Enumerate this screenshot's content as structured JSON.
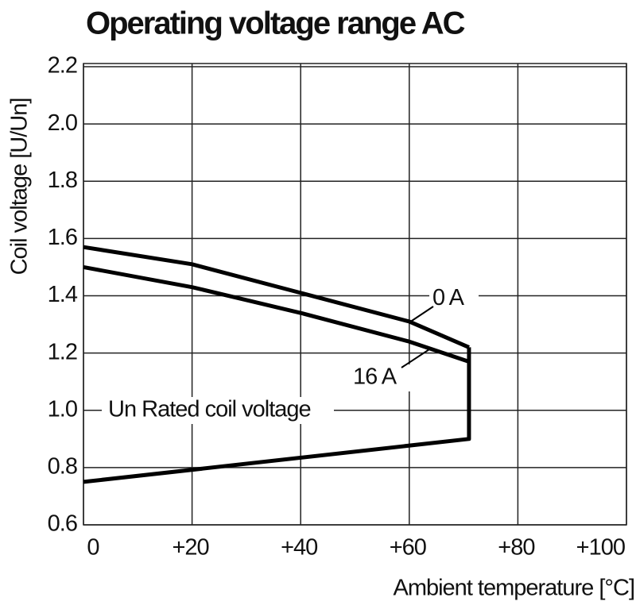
{
  "chart_data": {
    "type": "line",
    "title": "Operating voltage range AC",
    "x_label": "Ambient temperature [°C]",
    "y_label": "Coil voltage [U/Un]",
    "annotations": [
      "Un Rated coil voltage"
    ],
    "xlim": [
      0,
      100
    ],
    "xticks": [
      0,
      {
        "value": 20,
        "label": "+20"
      },
      {
        "value": 40,
        "label": "+40"
      },
      {
        "value": 60,
        "label": "+60"
      },
      {
        "value": 80,
        "label": "+80"
      },
      {
        "value": 100,
        "label": "+100"
      }
    ],
    "ylim": [
      0.6,
      2.2
    ],
    "yticks": [
      0.6,
      0.8,
      {
        "value": 1.0,
        "label": "1.0"
      },
      1.2,
      1.4,
      1.6,
      1.8,
      {
        "value": 2.0,
        "label": "2.0"
      },
      2.2
    ],
    "grid": true,
    "series": [
      {
        "name": "0 A",
        "color": "#000000",
        "x": [
          0,
          20,
          40,
          60,
          71
        ],
        "values": [
          1.57,
          1.51,
          1.41,
          1.31,
          1.22
        ]
      },
      {
        "name": "16 A",
        "color": "#000000",
        "x": [
          0,
          20,
          40,
          60,
          71
        ],
        "values": [
          1.5,
          1.43,
          1.34,
          1.24,
          1.17
        ]
      },
      {
        "color": "#000000",
        "x": [
          0,
          71,
          71
        ],
        "values": [
          0.75,
          0.9,
          1.22
        ]
      }
    ]
  }
}
